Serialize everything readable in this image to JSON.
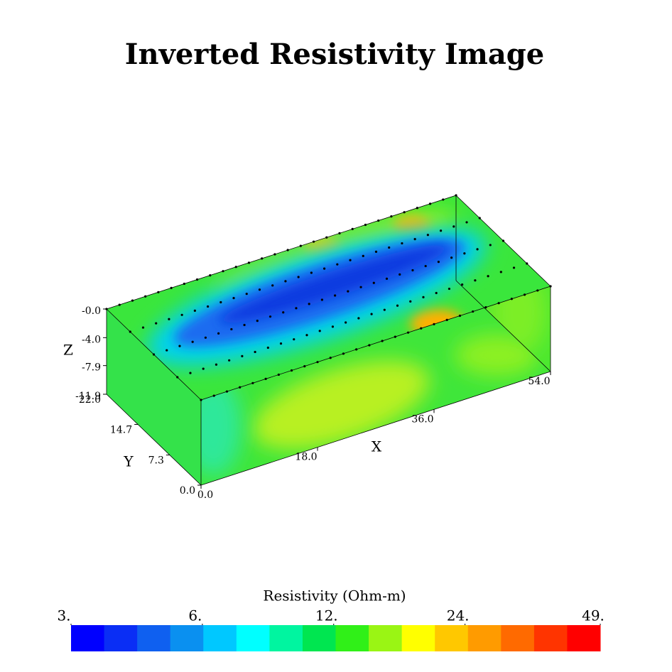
{
  "chart_data": {
    "type": "volume",
    "title": "Inverted Resistivity Image",
    "xlabel": "X",
    "ylabel": "Y",
    "zlabel": "Z",
    "xlim": [
      0,
      54
    ],
    "xticks": [
      {
        "value": 0,
        "label": "0.0"
      },
      {
        "value": 18,
        "label": "18.0"
      },
      {
        "value": 36,
        "label": "36.0"
      },
      {
        "value": 54,
        "label": "54.0"
      }
    ],
    "ylim": [
      0,
      22
    ],
    "yticks": [
      {
        "value": 0,
        "label": "0.0"
      },
      {
        "value": 7.3,
        "label": "7.3"
      },
      {
        "value": 14.7,
        "label": "14.7"
      },
      {
        "value": 22,
        "label": "22.0"
      }
    ],
    "zlim": [
      -11.9,
      0
    ],
    "zticks": [
      {
        "value": 0,
        "label": "-0.0"
      },
      {
        "value": -4,
        "label": "-4.0"
      },
      {
        "value": -7.9,
        "label": "-7.9"
      },
      {
        "value": -11.9,
        "label": "-11.9"
      }
    ],
    "colorbar": {
      "label": "Resistivity (Ohm-m)",
      "log": true,
      "lim": [
        3,
        49
      ],
      "ticks": [
        {
          "value": 3,
          "label": "3."
        },
        {
          "value": 6,
          "label": "6."
        },
        {
          "value": 12,
          "label": "12."
        },
        {
          "value": 24,
          "label": "24."
        },
        {
          "value": 49,
          "label": "49."
        }
      ],
      "colors": [
        "#0000ff",
        "#0a2ef5",
        "#0f60f0",
        "#0a90f0",
        "#00c8ff",
        "#00ffff",
        "#00f5a0",
        "#00e650",
        "#30f018",
        "#9af514",
        "#ffff00",
        "#ffc800",
        "#ff9b00",
        "#ff6a00",
        "#ff3400",
        "#ff0000"
      ]
    }
  }
}
